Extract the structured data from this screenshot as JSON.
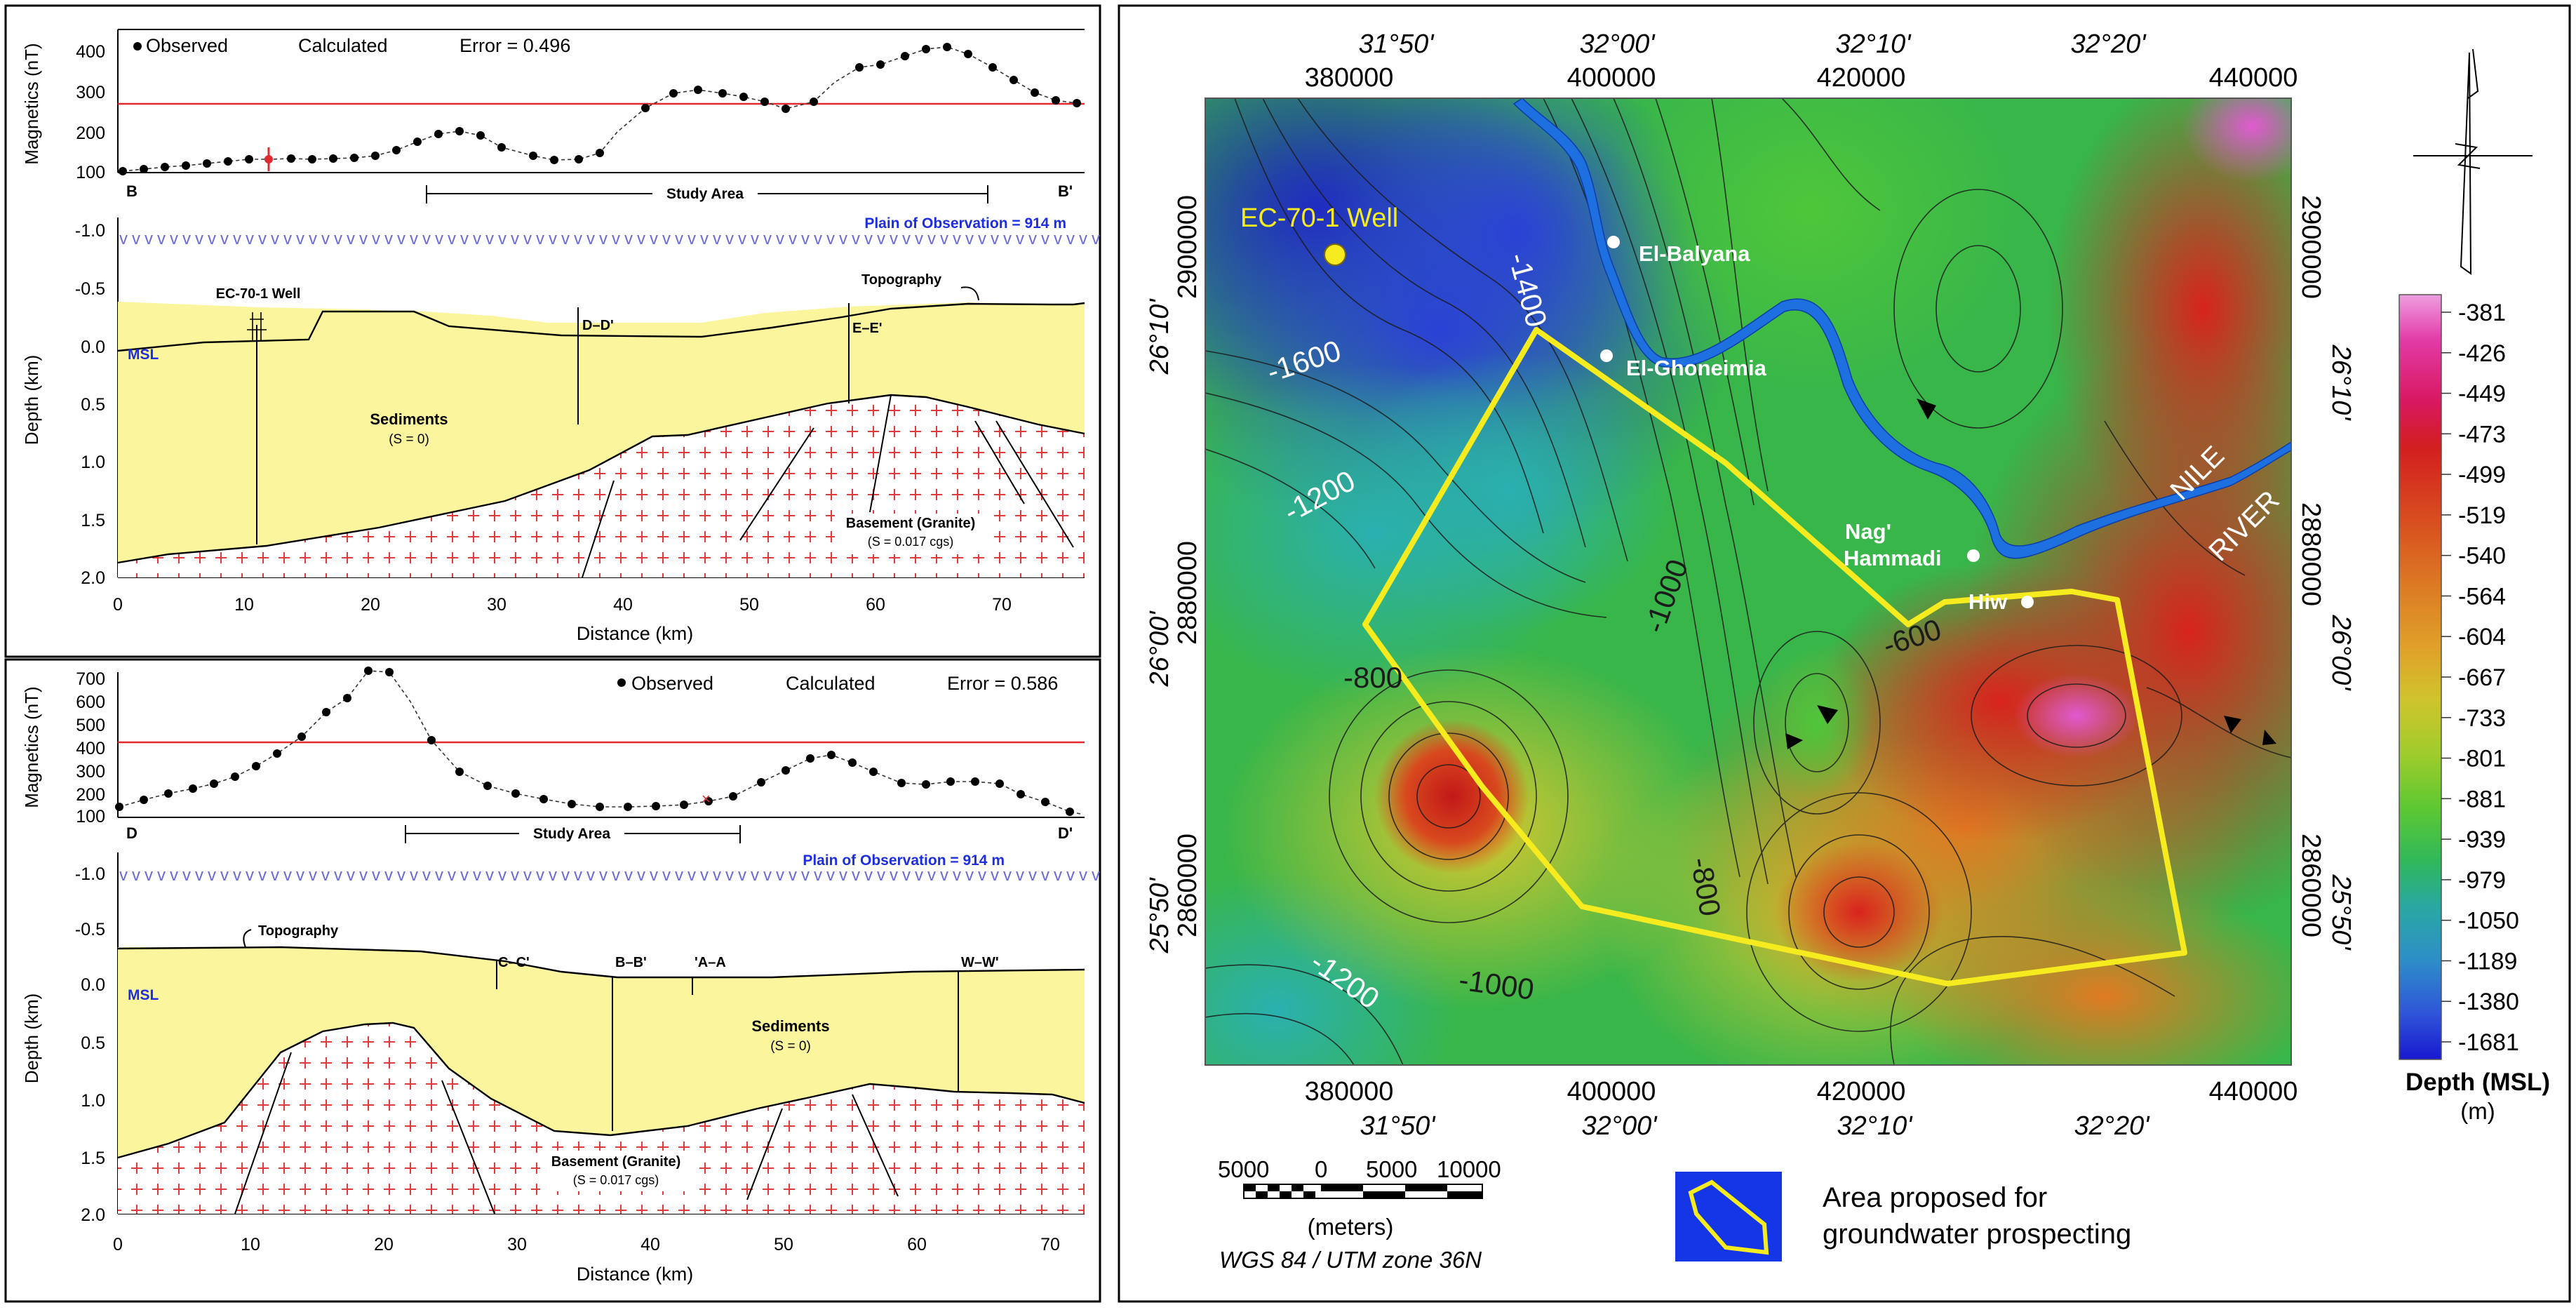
{
  "top_profile": {
    "legend_observed": "Observed",
    "legend_calculated": "Calculated",
    "error": "Error = 0.496",
    "mag_ylabel": "Magnetics (nT)",
    "mag_ticks": [
      "400",
      "300",
      "200",
      "100"
    ],
    "end_left": "B",
    "end_right": "B'",
    "study_area": "Study Area",
    "plain": "Plain of Observation = 914 m",
    "depth_ticks": [
      "-1.0",
      "-0.5",
      "0.0",
      "0.5",
      "1.0",
      "1.5",
      "2.0"
    ],
    "depth_ylabel": "Depth (km)",
    "msl": "MSL",
    "well": "EC-70-1 Well",
    "topography": "Topography",
    "cross1": "D–D'",
    "cross2": "E–E'",
    "sediments": "Sediments",
    "sediments_s": "(S = 0)",
    "basement": "Basement (Granite)",
    "basement_s": "(S = 0.017 cgs)",
    "dist_ticks": [
      "0",
      "10",
      "20",
      "30",
      "40",
      "50",
      "60",
      "70"
    ],
    "xlabel": "Distance (km)"
  },
  "bottom_profile": {
    "legend_observed": "Observed",
    "legend_calculated": "Calculated",
    "error": "Error = 0.586",
    "mag_ylabel": "Magnetics (nT)",
    "mag_ticks": [
      "700",
      "600",
      "500",
      "400",
      "300",
      "200",
      "100"
    ],
    "end_left": "D",
    "end_right": "D'",
    "study_area": "Study Area",
    "plain": "Plain of Observation = 914 m",
    "depth_ticks": [
      "-1.0",
      "-0.5",
      "0.0",
      "0.5",
      "1.0",
      "1.5",
      "2.0"
    ],
    "depth_ylabel": "Depth (km)",
    "msl": "MSL",
    "topography": "Topography",
    "cross1": "C–C'",
    "cross2": "B–B'",
    "cross3": "'A–A",
    "cross4": "W–W'",
    "sediments": "Sediments",
    "sediments_s": "(S = 0)",
    "basement": "Basement (Granite)",
    "basement_s": "(S = 0.017 cgs)",
    "dist_ticks": [
      "0",
      "10",
      "20",
      "30",
      "40",
      "50",
      "60",
      "70"
    ],
    "xlabel": "Distance (km)"
  },
  "map": {
    "top_lon": [
      "31°50'",
      "32°00'",
      "32°10'",
      "32°20'"
    ],
    "bottom_lon": [
      "31°50'",
      "32°00'",
      "32°10'",
      "32°20'"
    ],
    "easting": [
      "380000",
      "400000",
      "420000",
      "440000"
    ],
    "northing": [
      "2900000",
      "2880000",
      "2860000"
    ],
    "left_lat": [
      "26°10'",
      "26°00'",
      "25°50'"
    ],
    "right_lat": [
      "26°10'",
      "26°00'",
      "25°50'"
    ],
    "well": "EC-70-1 Well",
    "places": [
      "El-Balyana",
      "El-Ghoneimia",
      "Nag'",
      "Hammadi",
      "Hiw"
    ],
    "river": [
      "NILE",
      "RIVER"
    ],
    "contours": [
      "-1600",
      "-1400",
      "-1200",
      "-1000",
      "-800",
      "-600",
      "-800",
      "-1000",
      "-1200"
    ],
    "scale_ticks": [
      "5000",
      "0",
      "5000",
      "10000"
    ],
    "scale_unit": "(meters)",
    "datum": "WGS 84 / UTM zone 36N",
    "legend_text": [
      "Area proposed for",
      "groundwater prospecting"
    ],
    "colors": {
      "study_polygon": "#f5eb1e",
      "river": "#1e6fe0",
      "legend_box": "#1436e6"
    }
  },
  "colorbar": {
    "labels": [
      "-381",
      "-426",
      "-449",
      "-473",
      "-499",
      "-519",
      "-540",
      "-564",
      "-604",
      "-667",
      "-733",
      "-801",
      "-881",
      "-939",
      "-979",
      "-1050",
      "-1189",
      "-1380",
      "-1681"
    ],
    "title": "Depth (MSL)",
    "unit": "(m)",
    "colors": [
      "#e88ed8",
      "#e23aa6",
      "#d81860",
      "#d21f1f",
      "#cc2a1c",
      "#d3401f",
      "#d85a22",
      "#dc7424",
      "#e0932a",
      "#d9b02e",
      "#c8c42c",
      "#9ccc2c",
      "#5ec832",
      "#39be46",
      "#2ab672",
      "#29a8a2",
      "#2e8ec8",
      "#2f62d6",
      "#2424d8"
    ]
  }
}
